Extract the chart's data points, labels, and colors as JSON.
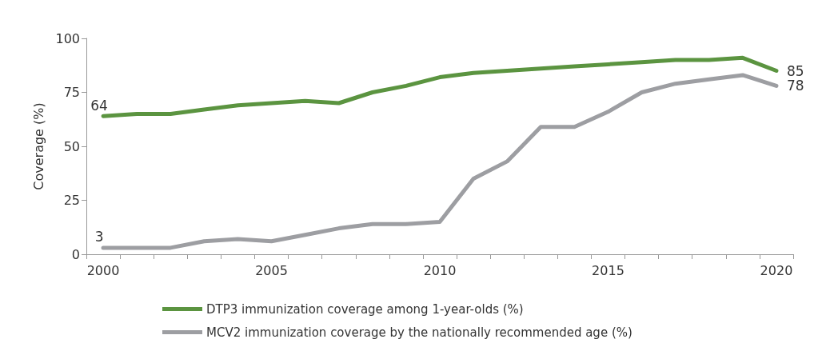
{
  "chart_data": {
    "type": "line",
    "ylabel": "Coverage (%)",
    "categories": [
      "2000",
      null,
      null,
      null,
      null,
      "2005",
      null,
      null,
      null,
      null,
      "2010",
      null,
      null,
      null,
      null,
      "2015",
      null,
      null,
      null,
      null,
      "2020"
    ],
    "series": [
      {
        "name": "DTP3 immunization coverage among 1-year-olds (%)",
        "color": "#5b9440",
        "values": [
          64,
          65,
          65,
          67,
          69,
          70,
          71,
          70,
          75,
          78,
          82,
          84,
          85,
          86,
          87,
          88,
          89,
          90,
          90,
          91,
          85
        ],
        "value_labels": [
          "64",
          null,
          null,
          null,
          null,
          null,
          null,
          null,
          null,
          null,
          null,
          null,
          null,
          null,
          null,
          null,
          null,
          null,
          null,
          null,
          "85"
        ]
      },
      {
        "name": "MCV2 immunization coverage by the nationally recommended age (%)",
        "color": "#9d9ea2",
        "values": [
          3,
          3,
          3,
          6,
          7,
          6,
          9,
          12,
          14,
          14,
          15,
          35,
          43,
          59,
          59,
          66,
          75,
          79,
          81,
          83,
          78
        ],
        "value_labels": [
          "3",
          null,
          null,
          null,
          null,
          null,
          null,
          null,
          null,
          null,
          null,
          null,
          null,
          null,
          null,
          null,
          null,
          null,
          null,
          null,
          "78"
        ]
      }
    ],
    "ylim": [
      0,
      100
    ],
    "yticks": [
      0,
      25,
      50,
      75,
      100
    ],
    "grid": false,
    "legend": "bottom",
    "marker": "none",
    "line_style": "solid"
  }
}
